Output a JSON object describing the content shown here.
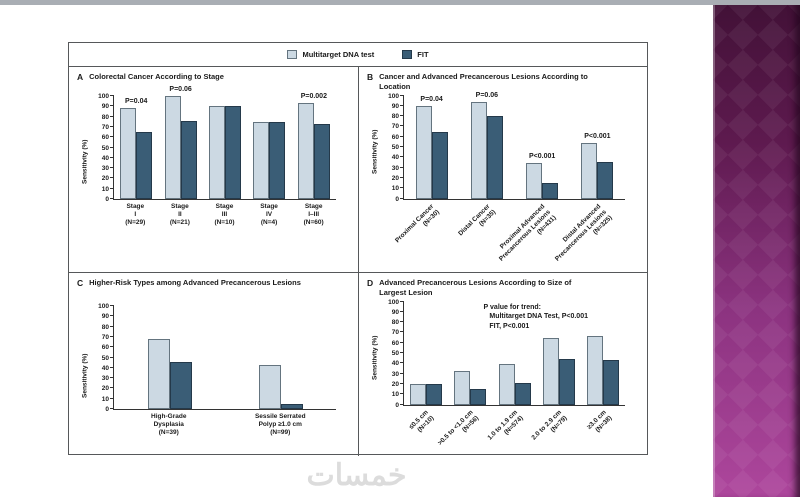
{
  "page": {
    "watermark": "خمسات"
  },
  "colors": {
    "dna_fill": "#ccd9e3",
    "dna_border": "#64747f",
    "fit_fill": "#3a5d76",
    "fit_border": "#24394a",
    "sidebar_top": "#421137",
    "sidebar_bottom": "#ad469c",
    "top_bar": "#a9aeb4",
    "watermark_gray": "#dcdcdc"
  },
  "legend": {
    "items": [
      {
        "label": "Multitarget DNA test",
        "color": "#ccd9e3",
        "border": "#64747f"
      },
      {
        "label": "FIT",
        "color": "#3a5d76",
        "border": "#24394a"
      }
    ]
  },
  "chart_data": [
    {
      "type": "bar",
      "panel": "A",
      "title": "Colorectal Cancer According to Stage",
      "ylabel": "Sensitivity (%)",
      "ylim": [
        0,
        100
      ],
      "ytick_step": 10,
      "legend_position": "top",
      "grid": false,
      "categories": [
        [
          "Stage",
          "I",
          "(N=29)"
        ],
        [
          "Stage",
          "II",
          "(N=21)"
        ],
        [
          "Stage",
          "III",
          "(N=10)"
        ],
        [
          "Stage",
          "IV",
          "(N=4)"
        ],
        [
          "Stage",
          "I–III",
          "(N=60)"
        ]
      ],
      "series": [
        {
          "name": "Multitarget DNA test",
          "values": [
            88,
            100,
            90,
            75,
            93
          ]
        },
        {
          "name": "FIT",
          "values": [
            65,
            76,
            90,
            75,
            73
          ]
        }
      ],
      "p_values": [
        "P=0.04",
        "P=0.06",
        "",
        "",
        "P=0.002"
      ]
    },
    {
      "type": "bar",
      "panel": "B",
      "title": "Cancer and Advanced Precancerous Lesions According to Location",
      "ylabel": "Sensitivity (%)",
      "ylim": [
        0,
        100
      ],
      "ytick_step": 10,
      "grid": false,
      "categories": [
        [
          "Proximal Cancer",
          "(N=30)"
        ],
        [
          "Distal Cancer",
          "(N=35)"
        ],
        [
          "Proximal Advanced",
          "Precancerous Lesions",
          "(N=431)"
        ],
        [
          "Distal Advanced",
          "Precancerous Lesions",
          "(N=325)"
        ]
      ],
      "series": [
        {
          "name": "Multitarget DNA test",
          "values": [
            90,
            94,
            34,
            54
          ]
        },
        {
          "name": "FIT",
          "values": [
            65,
            80,
            15,
            35
          ]
        }
      ],
      "p_values": [
        "P=0.04",
        "P=0.06",
        "P<0.001",
        "P<0.001"
      ]
    },
    {
      "type": "bar",
      "panel": "C",
      "title": "Higher-Risk Types among Advanced Precancerous Lesions",
      "ylabel": "Sensitivity (%)",
      "ylim": [
        0,
        100
      ],
      "ytick_step": 10,
      "grid": false,
      "categories": [
        [
          "High-Grade",
          "Dysplasia",
          "(N=39)"
        ],
        [
          "Sessile Serrated",
          "Polyp ≥1.0 cm",
          "(N=99)"
        ]
      ],
      "series": [
        {
          "name": "Multitarget DNA test",
          "values": [
            68,
            43
          ]
        },
        {
          "name": "FIT",
          "values": [
            46,
            5
          ]
        }
      ],
      "p_values": [
        "",
        ""
      ]
    },
    {
      "type": "bar",
      "panel": "D",
      "title": "Advanced Precancerous Lesions According to Size of Largest Lesion",
      "ylabel": "Sensitivity (%)",
      "ylim": [
        0,
        100
      ],
      "ytick_step": 10,
      "grid": false,
      "categories": [
        [
          "≤0.5 cm",
          "(N=10)"
        ],
        [
          ">0.5 to <1.0 cm",
          "(N=56)"
        ],
        [
          "1.0 to 1.9 cm",
          "(N=574)"
        ],
        [
          "2.0 to 2.9 cm",
          "(N=79)"
        ],
        [
          "≥3.0 cm",
          "(N=38)"
        ]
      ],
      "series": [
        {
          "name": "Multitarget DNA test",
          "values": [
            20,
            33,
            39,
            65,
            67
          ]
        },
        {
          "name": "FIT",
          "values": [
            20,
            15,
            21,
            44,
            43
          ]
        }
      ],
      "p_values": [
        "",
        "",
        "",
        "",
        ""
      ],
      "annotation": [
        "P value for trend:",
        "   Multitarget DNA Test, P<0.001",
        "   FIT, P<0.001"
      ]
    }
  ]
}
